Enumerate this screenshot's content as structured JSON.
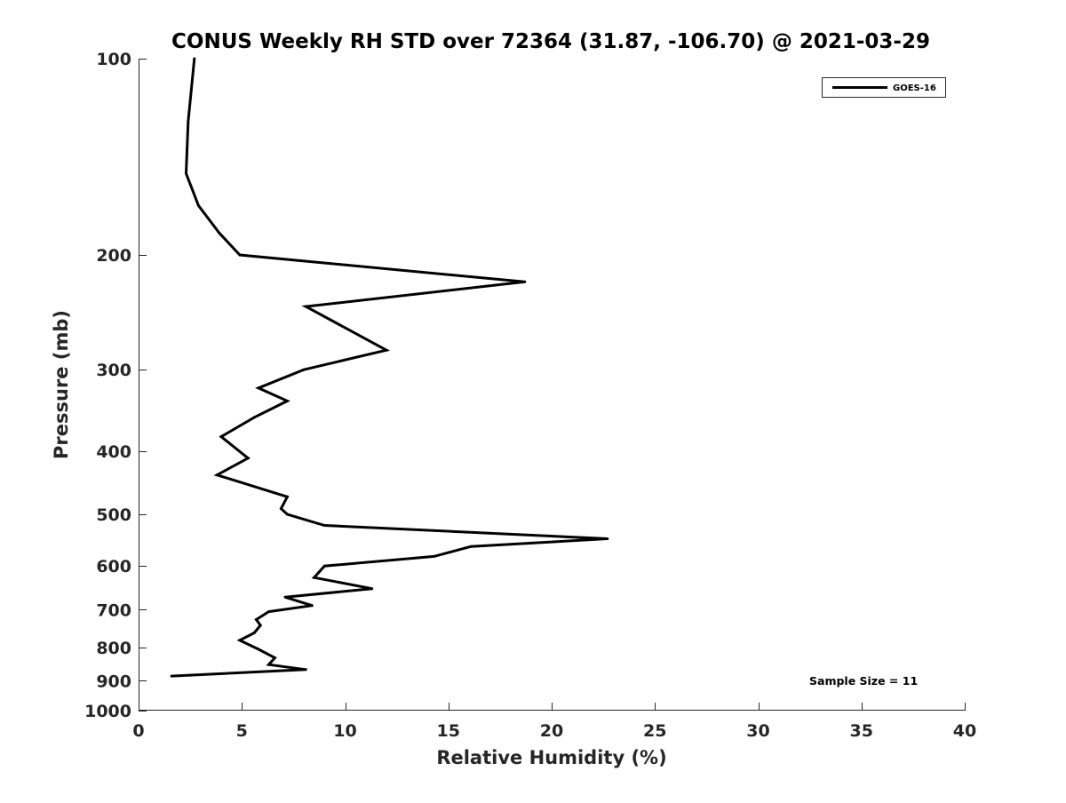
{
  "chart_data": {
    "type": "line",
    "title": "CONUS Weekly RH STD over 72364 (31.87, -106.70) @ 2021-03-29",
    "xlabel": "Relative Humidity (%)",
    "ylabel": "Pressure (mb)",
    "xlim": [
      0,
      40
    ],
    "ylim": [
      100,
      1000
    ],
    "y_scale": "log",
    "y_reversed": true,
    "grid": false,
    "legend_position": "top-right",
    "x_ticks": [
      0,
      5,
      10,
      15,
      20,
      25,
      30,
      35,
      40
    ],
    "x_tick_labels": [
      "0",
      "5",
      "10",
      "15",
      "20",
      "25",
      "30",
      "35",
      "40"
    ],
    "y_ticks": [
      100,
      200,
      300,
      400,
      500,
      600,
      700,
      800,
      900,
      1000
    ],
    "y_tick_labels": [
      "100",
      "200",
      "300",
      "400",
      "500",
      "600",
      "700",
      "800",
      "900",
      "1000"
    ],
    "series": [
      {
        "name": "GOES-16",
        "color": "#000000",
        "points": [
          {
            "x": 2.7,
            "p": 100
          },
          {
            "x": 2.4,
            "p": 125
          },
          {
            "x": 2.3,
            "p": 150
          },
          {
            "x": 2.9,
            "p": 168
          },
          {
            "x": 3.9,
            "p": 185
          },
          {
            "x": 4.9,
            "p": 200
          },
          {
            "x": 18.7,
            "p": 220
          },
          {
            "x": 8.1,
            "p": 240
          },
          {
            "x": 12.0,
            "p": 280
          },
          {
            "x": 8.0,
            "p": 300
          },
          {
            "x": 5.8,
            "p": 320
          },
          {
            "x": 7.2,
            "p": 335
          },
          {
            "x": 5.6,
            "p": 355
          },
          {
            "x": 4.0,
            "p": 380
          },
          {
            "x": 5.3,
            "p": 410
          },
          {
            "x": 3.8,
            "p": 435
          },
          {
            "x": 7.2,
            "p": 470
          },
          {
            "x": 6.9,
            "p": 490
          },
          {
            "x": 7.2,
            "p": 500
          },
          {
            "x": 9.0,
            "p": 520
          },
          {
            "x": 22.7,
            "p": 545
          },
          {
            "x": 16.1,
            "p": 560
          },
          {
            "x": 14.3,
            "p": 580
          },
          {
            "x": 9.0,
            "p": 600
          },
          {
            "x": 8.5,
            "p": 625
          },
          {
            "x": 11.3,
            "p": 650
          },
          {
            "x": 7.1,
            "p": 670
          },
          {
            "x": 8.4,
            "p": 690
          },
          {
            "x": 6.3,
            "p": 705
          },
          {
            "x": 5.7,
            "p": 725
          },
          {
            "x": 5.9,
            "p": 740
          },
          {
            "x": 5.6,
            "p": 760
          },
          {
            "x": 4.9,
            "p": 780
          },
          {
            "x": 5.8,
            "p": 805
          },
          {
            "x": 6.6,
            "p": 830
          },
          {
            "x": 6.3,
            "p": 850
          },
          {
            "x": 8.1,
            "p": 865
          },
          {
            "x": 1.6,
            "p": 885
          }
        ]
      }
    ],
    "annotation": "Sample Size = 11"
  }
}
